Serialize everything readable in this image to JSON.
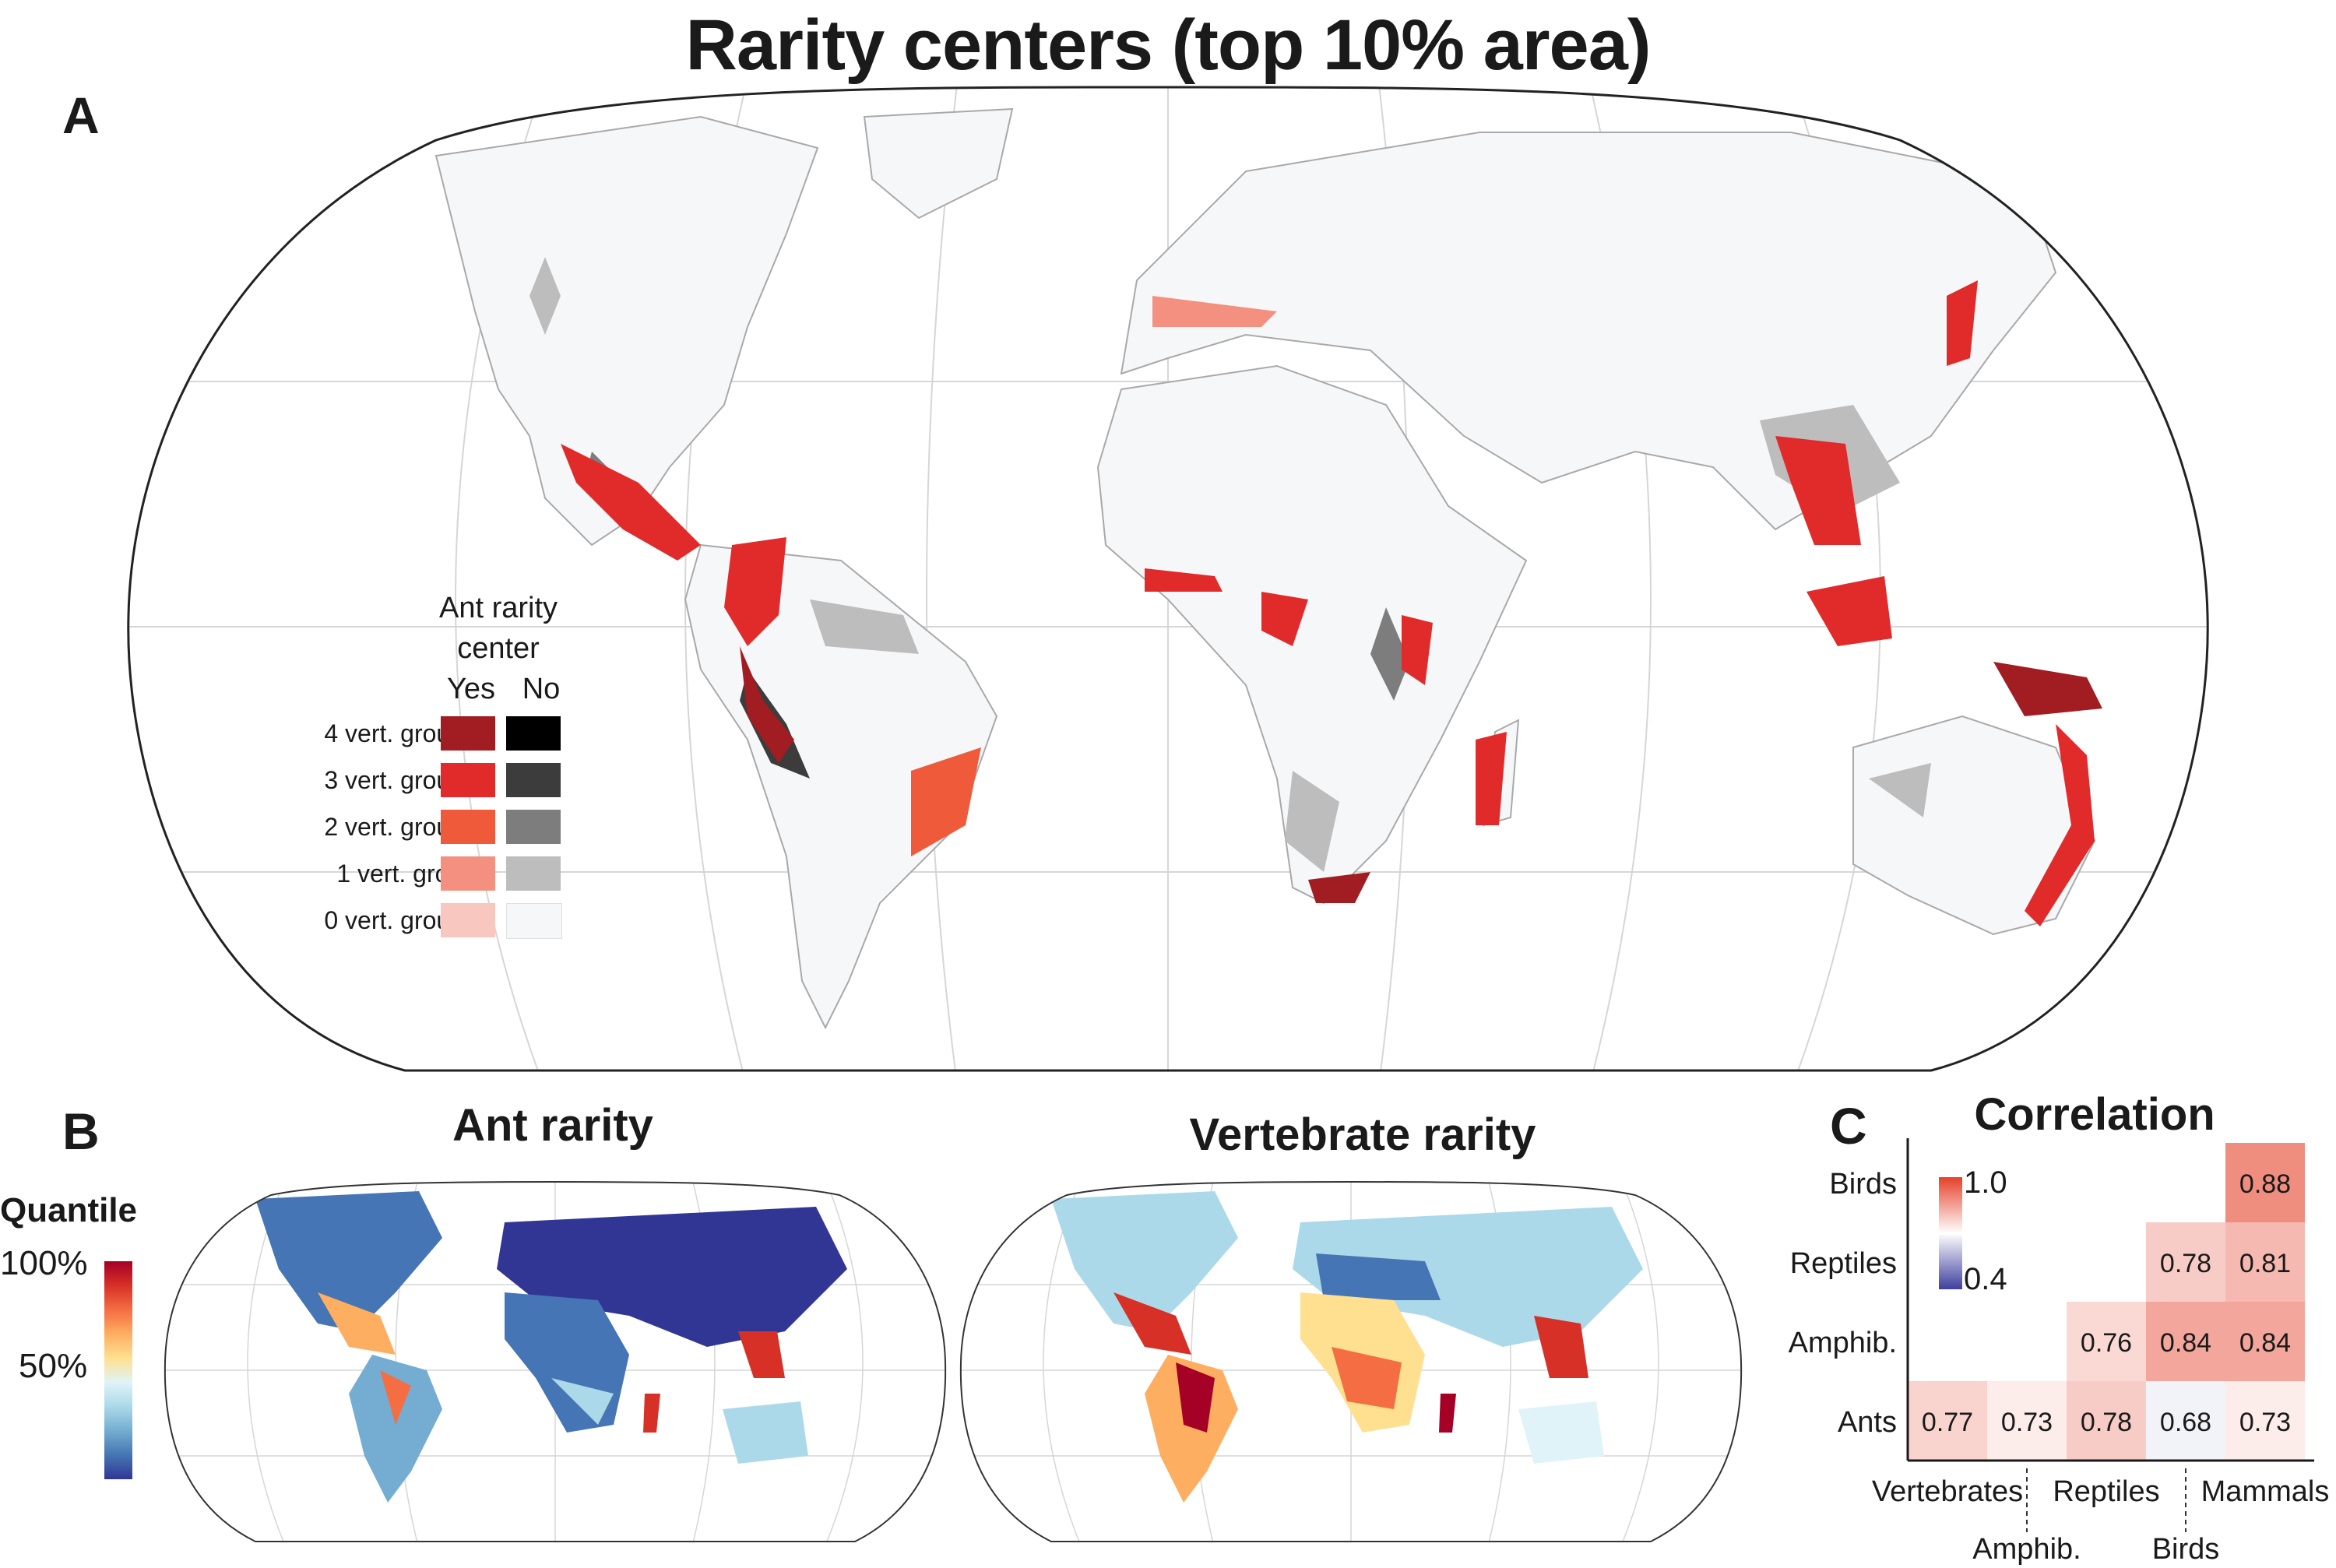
{
  "title": "Rarity centers (top 10% area)",
  "panels": {
    "a": {
      "letter": "A",
      "legend": {
        "heading_line1": "Ant rarity",
        "heading_line2": "center",
        "col_yes": "Yes",
        "col_no": "No",
        "rows": [
          {
            "label": "4 vert. groups",
            "yes_color": "#a11d22",
            "no_color": "#000000"
          },
          {
            "label": "3 vert. groups",
            "yes_color": "#e12a2a",
            "no_color": "#3c3c3c"
          },
          {
            "label": "2 vert. groups",
            "yes_color": "#ef5a3a",
            "no_color": "#7d7d7d"
          },
          {
            "label": "1 vert. group",
            "yes_color": "#f4907f",
            "no_color": "#bdbdbd"
          },
          {
            "label": "0 vert. groups",
            "yes_color": "#f8c7bf",
            "no_color": "#f6f7f9"
          }
        ]
      }
    },
    "b": {
      "letter": "B",
      "left_title": "Ant rarity",
      "right_title": "Vertebrate rarity",
      "legend": {
        "title": "Quantile",
        "top_label": "100%",
        "mid_label": "50%",
        "colors": [
          "#a50026",
          "#d73027",
          "#f46d43",
          "#fdae61",
          "#fee090",
          "#e0f3f8",
          "#abd9e9",
          "#74add1",
          "#4575b4",
          "#313695"
        ]
      }
    },
    "c": {
      "letter": "C",
      "title": "Correlation",
      "scale_max": "1.0",
      "scale_min": "0.4"
    }
  },
  "chart_data": {
    "type": "heatmap",
    "title": "Correlation",
    "row_labels": [
      "Birds",
      "Reptiles",
      "Amphib.",
      "Ants"
    ],
    "col_labels": [
      "Vertebrates",
      "Amphib.",
      "Reptiles",
      "Birds",
      "Mammals"
    ],
    "cells": [
      {
        "row": "Birds",
        "col": "Mammals",
        "value": 0.88,
        "label": "0.88"
      },
      {
        "row": "Reptiles",
        "col": "Birds",
        "value": 0.78,
        "label": "0.78"
      },
      {
        "row": "Reptiles",
        "col": "Mammals",
        "value": 0.81,
        "label": "0.81"
      },
      {
        "row": "Amphib.",
        "col": "Reptiles",
        "value": 0.76,
        "label": "0.76"
      },
      {
        "row": "Amphib.",
        "col": "Birds",
        "value": 0.84,
        "label": "0.84"
      },
      {
        "row": "Amphib.",
        "col": "Mammals",
        "value": 0.84,
        "label": "0.84"
      },
      {
        "row": "Ants",
        "col": "Vertebrates",
        "value": 0.77,
        "label": "0.77"
      },
      {
        "row": "Ants",
        "col": "Amphib.",
        "value": 0.73,
        "label": "0.73"
      },
      {
        "row": "Ants",
        "col": "Reptiles",
        "value": 0.78,
        "label": "0.78"
      },
      {
        "row": "Ants",
        "col": "Birds",
        "value": 0.68,
        "label": "0.68"
      },
      {
        "row": "Ants",
        "col": "Mammals",
        "value": 0.73,
        "label": "0.73"
      }
    ],
    "color_range": [
      0.4,
      1.0
    ],
    "color_low": "#3f3f9f",
    "color_mid": "#ffffff",
    "color_high": "#e5412a"
  }
}
